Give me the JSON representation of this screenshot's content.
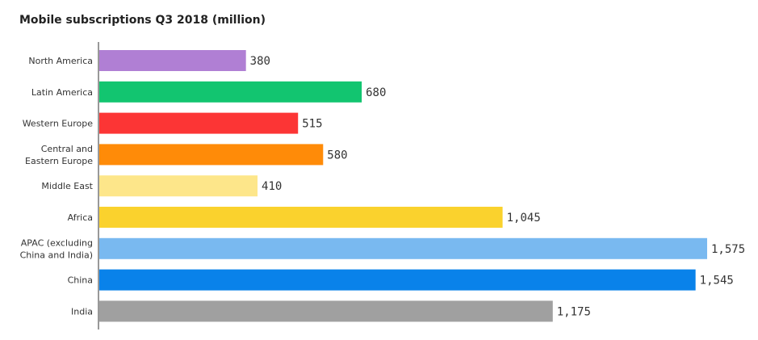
{
  "chart_data": {
    "type": "bar",
    "orientation": "horizontal",
    "title": "Mobile subscriptions Q3 2018 (million)",
    "xlabel": "",
    "ylabel": "",
    "categories": [
      "North America",
      "Latin America",
      "Western Europe",
      "Central and Eastern Europe",
      "Middle East",
      "Africa",
      "APAC (excluding China and India)",
      "China",
      "India"
    ],
    "category_label_lines": [
      [
        "North America"
      ],
      [
        "Latin America"
      ],
      [
        "Western Europe"
      ],
      [
        "Central and",
        "Eastern Europe"
      ],
      [
        "Middle East"
      ],
      [
        "Africa"
      ],
      [
        "APAC (excluding",
        "China and India)"
      ],
      [
        "China"
      ],
      [
        "India"
      ]
    ],
    "values": [
      380,
      680,
      515,
      580,
      410,
      1045,
      1575,
      1545,
      1175
    ],
    "value_labels": [
      "380",
      "680",
      "515",
      "580",
      "410",
      "1,045",
      "1,575",
      "1,545",
      "1,175"
    ],
    "colors": [
      "#b07fd4",
      "#12c570",
      "#fc3535",
      "#ff8b08",
      "#fde68a",
      "#fad22d",
      "#79b9f0",
      "#0982ea",
      "#a0a0a0"
    ],
    "xlim": [
      0,
      1575
    ],
    "grid": false,
    "legend": "none"
  }
}
